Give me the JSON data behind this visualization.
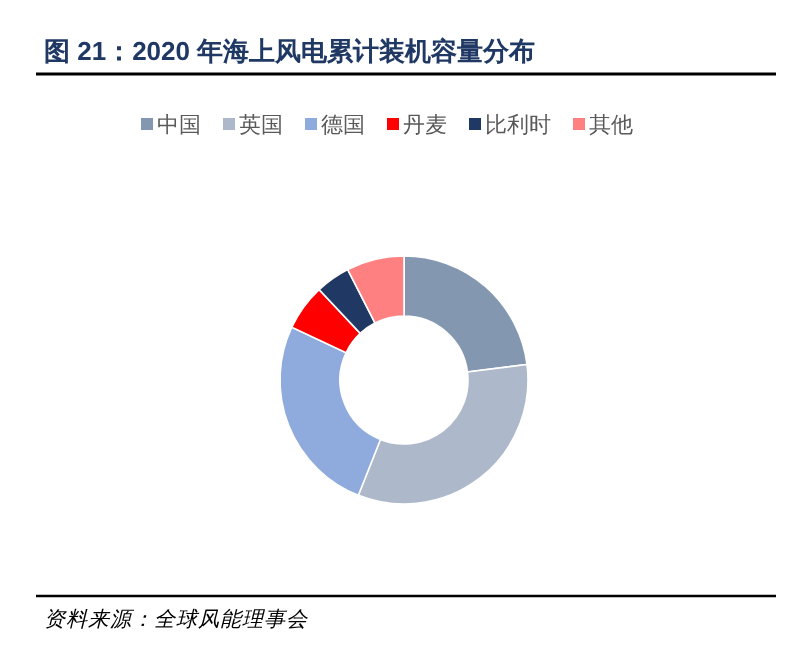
{
  "chart_data": {
    "type": "donut",
    "title": "图 21：2020 年海上风电累计装机容量分布",
    "categories": [
      "中国",
      "英国",
      "德国",
      "丹麦",
      "比利时",
      "其他"
    ],
    "values": [
      23,
      33,
      26,
      6,
      4.5,
      7.5
    ],
    "colors": [
      "#8497b0",
      "#adb9ca",
      "#8faadc",
      "#ff0000",
      "#203864",
      "#ff8080"
    ],
    "legend": "top",
    "annotations": [
      "资料来源：全球风能理事会"
    ]
  }
}
